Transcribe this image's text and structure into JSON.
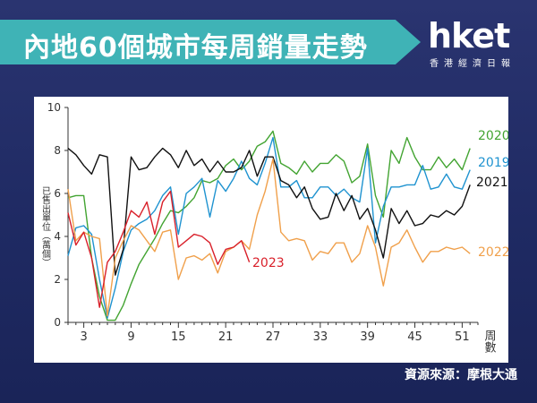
{
  "header": {
    "title": "內地60個城市每周銷量走勢",
    "logo_main": "hket",
    "logo_sub": "香港經濟日報"
  },
  "source": "資源來源：摩根大通",
  "colors": {
    "banner": "#3fb3b6",
    "background": "#1f2a63",
    "s2020": "#43a432",
    "s2019": "#1f93d0",
    "s2021": "#111111",
    "s2022": "#f0a04b",
    "s2023": "#d9202a"
  },
  "chart_data": {
    "type": "line",
    "title": "",
    "xlabel": "周數",
    "ylabel": "已售出單位（萬個）",
    "xlim": [
      1,
      53
    ],
    "ylim": [
      0,
      10
    ],
    "x_ticks": [
      3,
      9,
      15,
      21,
      27,
      33,
      39,
      45,
      51
    ],
    "y_ticks": [
      0,
      2,
      4,
      6,
      8,
      10
    ],
    "grid": false,
    "legend": "labels at line ends",
    "series": [
      {
        "name": "2020",
        "color": "#43a432",
        "x": [
          1,
          2,
          3,
          4,
          5,
          6,
          7,
          8,
          9,
          10,
          11,
          12,
          13,
          14,
          15,
          16,
          17,
          18,
          19,
          20,
          21,
          22,
          23,
          24,
          25,
          26,
          27,
          28,
          29,
          30,
          31,
          32,
          33,
          34,
          35,
          36,
          37,
          38,
          39,
          40,
          41,
          42,
          43,
          44,
          45,
          46,
          47,
          48,
          49,
          50,
          51,
          52
        ],
        "values": [
          5.8,
          5.9,
          5.9,
          3.0,
          1.2,
          0.1,
          0.1,
          0.8,
          1.8,
          2.7,
          3.3,
          3.9,
          4.6,
          5.2,
          5.1,
          5.4,
          5.8,
          6.6,
          6.5,
          6.7,
          7.3,
          7.6,
          7.1,
          7.5,
          8.2,
          8.4,
          8.9,
          7.4,
          7.2,
          6.9,
          7.5,
          7.0,
          7.4,
          7.4,
          7.8,
          7.5,
          6.5,
          6.8,
          8.3,
          5.9,
          4.9,
          8.0,
          7.4,
          8.6,
          7.7,
          7.1,
          7.1,
          7.7,
          7.2,
          7.6,
          7.1,
          8.1
        ]
      },
      {
        "name": "2019",
        "color": "#1f93d0",
        "x": [
          1,
          2,
          3,
          4,
          5,
          6,
          7,
          8,
          9,
          10,
          11,
          12,
          13,
          14,
          15,
          16,
          17,
          18,
          19,
          20,
          21,
          22,
          23,
          24,
          25,
          26,
          27,
          28,
          29,
          30,
          31,
          32,
          33,
          34,
          35,
          36,
          37,
          38,
          39,
          40,
          41,
          42,
          43,
          44,
          45,
          46,
          47,
          48,
          49,
          50,
          51,
          52
        ],
        "values": [
          3.1,
          4.4,
          4.5,
          4.1,
          2.0,
          0.2,
          1.6,
          3.3,
          4.3,
          4.6,
          4.8,
          5.2,
          5.9,
          6.3,
          4.1,
          6.0,
          6.3,
          6.7,
          4.9,
          6.6,
          6.1,
          6.7,
          7.5,
          6.7,
          6.4,
          7.4,
          8.6,
          6.3,
          6.3,
          6.6,
          5.8,
          5.8,
          6.3,
          6.3,
          5.9,
          6.2,
          5.8,
          5.6,
          8.1,
          3.7,
          5.4,
          6.3,
          6.3,
          6.4,
          6.4,
          7.3,
          6.2,
          6.3,
          6.9,
          6.3,
          6.2,
          7.1
        ]
      },
      {
        "name": "2021",
        "color": "#111111",
        "x": [
          1,
          2,
          3,
          4,
          5,
          6,
          7,
          8,
          9,
          10,
          11,
          12,
          13,
          14,
          15,
          16,
          17,
          18,
          19,
          20,
          21,
          22,
          23,
          24,
          25,
          26,
          27,
          28,
          29,
          30,
          31,
          32,
          33,
          34,
          35,
          36,
          37,
          38,
          39,
          40,
          41,
          42,
          43,
          44,
          45,
          46,
          47,
          48,
          49,
          50,
          51,
          52
        ],
        "values": [
          8.1,
          7.8,
          7.3,
          6.9,
          7.8,
          7.7,
          2.2,
          3.4,
          7.7,
          7.1,
          7.2,
          7.7,
          8.1,
          7.8,
          7.2,
          8.0,
          7.3,
          7.6,
          7.0,
          7.5,
          7.0,
          7.0,
          7.2,
          8.0,
          6.8,
          7.7,
          7.7,
          6.6,
          6.4,
          5.8,
          6.3,
          5.3,
          4.8,
          4.9,
          6.0,
          5.2,
          5.9,
          4.8,
          5.3,
          4.3,
          3.0,
          5.3,
          4.6,
          5.2,
          4.5,
          4.6,
          5.0,
          4.9,
          5.2,
          5.0,
          5.4,
          6.4
        ]
      },
      {
        "name": "2022",
        "color": "#f0a04b",
        "x": [
          1,
          2,
          3,
          4,
          5,
          6,
          7,
          8,
          9,
          10,
          11,
          12,
          13,
          14,
          15,
          16,
          17,
          18,
          19,
          20,
          21,
          22,
          23,
          24,
          25,
          26,
          27,
          28,
          29,
          30,
          31,
          32,
          33,
          34,
          35,
          36,
          37,
          38,
          39,
          40,
          41,
          42,
          43,
          44,
          45,
          46,
          47,
          48,
          49,
          50,
          51,
          52
        ],
        "values": [
          6.2,
          3.8,
          4.2,
          4.0,
          3.9,
          0.3,
          3.0,
          3.8,
          4.5,
          4.3,
          3.8,
          3.3,
          4.2,
          4.3,
          2.0,
          3.0,
          3.1,
          2.9,
          3.2,
          2.3,
          3.3,
          3.5,
          3.8,
          3.4,
          5.0,
          6.1,
          7.6,
          4.2,
          3.8,
          3.9,
          3.8,
          2.9,
          3.3,
          3.2,
          3.7,
          3.7,
          2.8,
          3.2,
          4.5,
          3.5,
          1.7,
          3.5,
          3.7,
          4.3,
          3.5,
          2.8,
          3.3,
          3.3,
          3.5,
          3.4,
          3.5,
          3.2
        ]
      },
      {
        "name": "2023",
        "color": "#d9202a",
        "x": [
          1,
          2,
          3,
          4,
          5,
          6,
          7,
          8,
          9,
          10,
          11,
          12,
          13,
          14,
          15,
          16,
          17,
          18,
          19,
          20,
          21,
          22,
          23,
          24
        ],
        "values": [
          5.1,
          3.6,
          4.2,
          3.0,
          0.7,
          2.8,
          3.3,
          4.2,
          5.2,
          4.9,
          5.6,
          4.1,
          5.6,
          6.1,
          3.5,
          3.8,
          4.1,
          4.0,
          3.7,
          2.7,
          3.4,
          3.5,
          3.8,
          2.8
        ]
      }
    ]
  }
}
